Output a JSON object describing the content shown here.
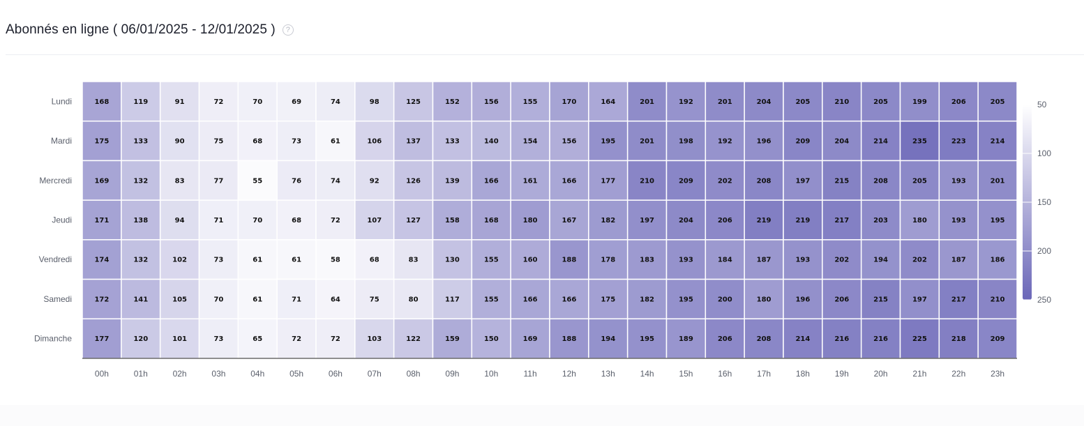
{
  "header": {
    "title": "Abonnés en ligne ( 06/01/2025 - 12/01/2025 )",
    "help_icon": "question-circle-icon"
  },
  "chart_data": {
    "type": "heatmap",
    "title": "Abonnés en ligne ( 06/01/2025 - 12/01/2025 )",
    "x_categories": [
      "00h",
      "01h",
      "02h",
      "03h",
      "04h",
      "05h",
      "06h",
      "07h",
      "08h",
      "09h",
      "10h",
      "11h",
      "12h",
      "13h",
      "14h",
      "15h",
      "16h",
      "17h",
      "18h",
      "19h",
      "20h",
      "21h",
      "22h",
      "23h"
    ],
    "y_categories": [
      "Lundi",
      "Mardi",
      "Mercredi",
      "Jeudi",
      "Vendredi",
      "Samedi",
      "Dimanche"
    ],
    "values": [
      [
        168,
        119,
        91,
        72,
        70,
        69,
        74,
        98,
        125,
        152,
        156,
        155,
        170,
        164,
        201,
        192,
        201,
        204,
        205,
        210,
        205,
        199,
        206,
        205
      ],
      [
        175,
        133,
        90,
        75,
        68,
        73,
        61,
        106,
        137,
        133,
        140,
        154,
        156,
        195,
        201,
        198,
        192,
        196,
        209,
        204,
        214,
        235,
        223,
        214
      ],
      [
        169,
        132,
        83,
        77,
        55,
        76,
        74,
        92,
        126,
        139,
        166,
        161,
        166,
        177,
        210,
        209,
        202,
        208,
        197,
        215,
        208,
        205,
        193,
        201
      ],
      [
        171,
        138,
        94,
        71,
        70,
        68,
        72,
        107,
        127,
        158,
        168,
        180,
        167,
        182,
        197,
        204,
        206,
        219,
        219,
        217,
        203,
        180,
        193,
        195
      ],
      [
        174,
        132,
        102,
        73,
        61,
        61,
        58,
        68,
        83,
        130,
        155,
        160,
        188,
        178,
        183,
        193,
        184,
        187,
        193,
        202,
        194,
        202,
        187,
        186
      ],
      [
        172,
        141,
        105,
        70,
        61,
        71,
        64,
        75,
        80,
        117,
        155,
        166,
        166,
        175,
        182,
        195,
        200,
        180,
        196,
        206,
        215,
        197,
        217,
        210
      ],
      [
        177,
        120,
        101,
        73,
        65,
        72,
        72,
        103,
        122,
        159,
        150,
        169,
        188,
        194,
        195,
        189,
        206,
        208,
        214,
        216,
        216,
        225,
        218,
        209
      ]
    ],
    "colorscale": {
      "min": 50,
      "max": 250,
      "ticks": [
        50,
        100,
        150,
        200,
        250
      ],
      "low_color": "#ffffff",
      "high_color": "#6b67b8"
    }
  }
}
